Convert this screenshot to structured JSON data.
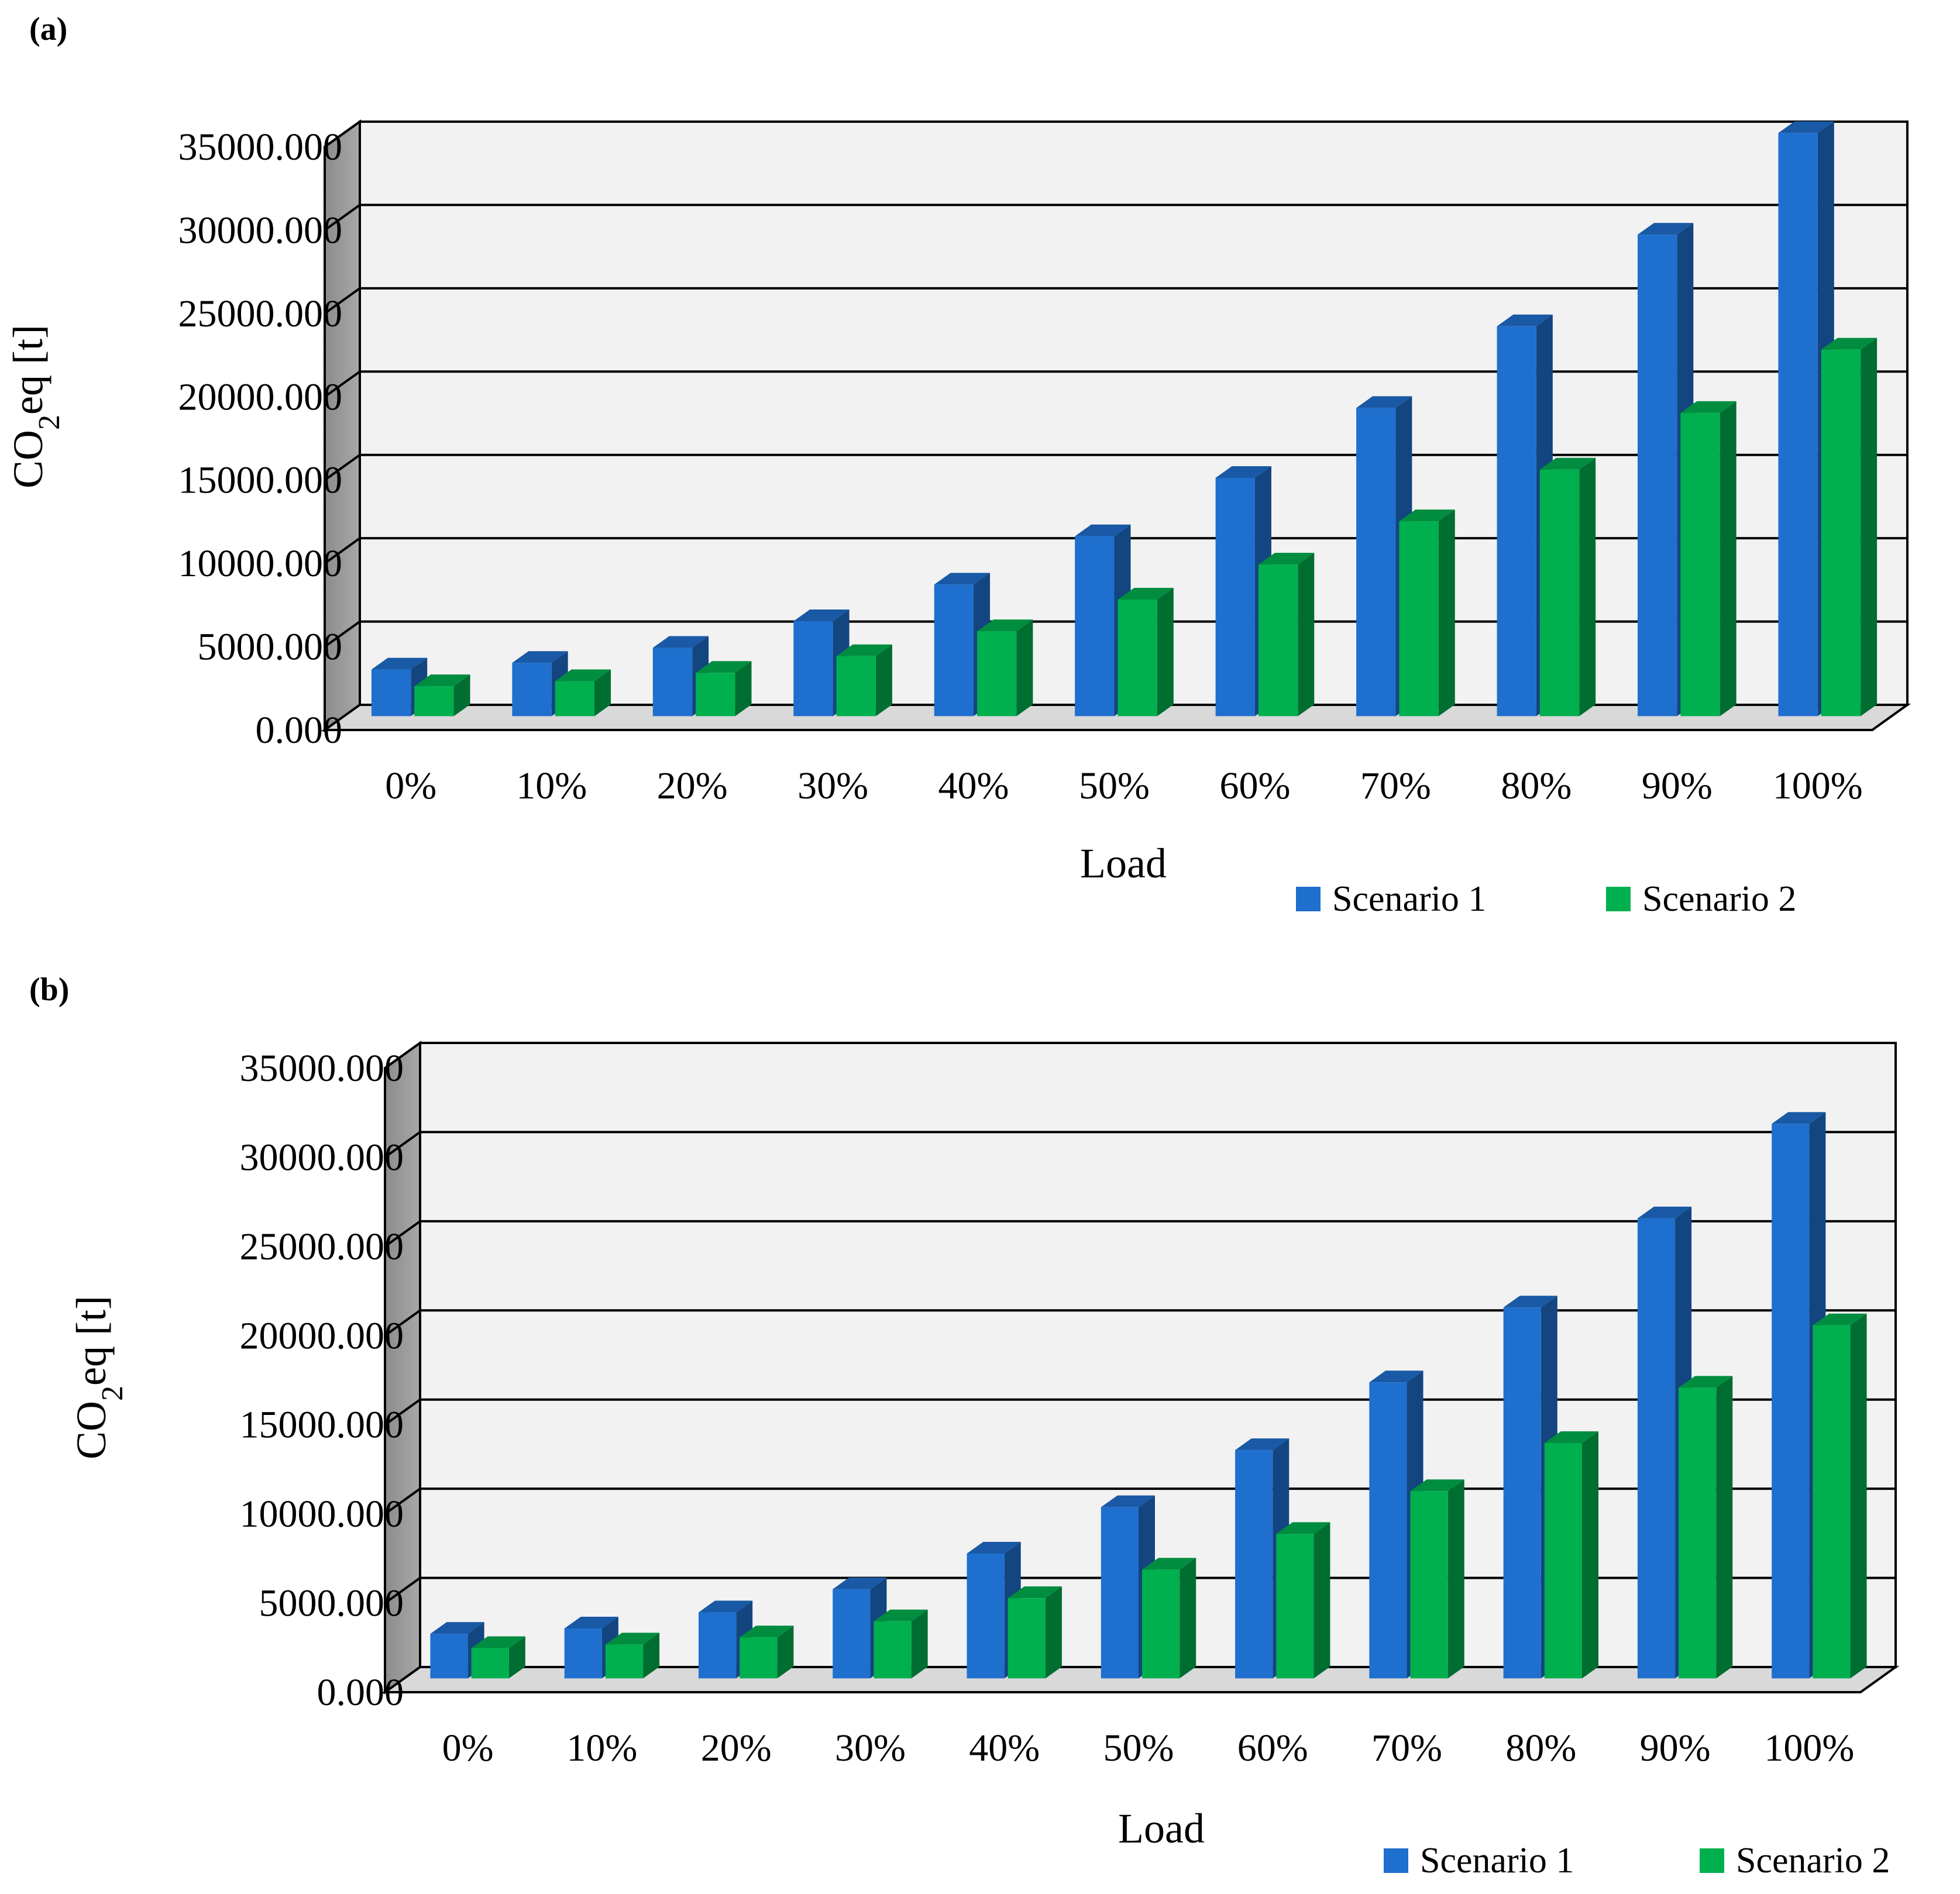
{
  "chart_data": [
    {
      "panel_label": "(a)",
      "type": "bar",
      "style": "3d-clustered-column",
      "categories": [
        "0%",
        "10%",
        "20%",
        "30%",
        "40%",
        "50%",
        "60%",
        "70%",
        "80%",
        "90%",
        "100%"
      ],
      "series": [
        {
          "name": "Scenario 1",
          "values": [
            2800,
            3200,
            4100,
            5700,
            7900,
            10800,
            14300,
            18500,
            23400,
            28900,
            35000
          ]
        },
        {
          "name": "Scenario 2",
          "values": [
            1800,
            2100,
            2600,
            3600,
            5100,
            7000,
            9100,
            11700,
            14800,
            18200,
            22000
          ]
        }
      ],
      "xlabel": "Load",
      "ylabel_main": "CO",
      "ylabel_sub": "2",
      "ylabel_rest": "eq [t]",
      "ylim": [
        0,
        35000
      ],
      "yticks": [
        "0.000",
        "5000.000",
        "10000.000",
        "15000.000",
        "20000.000",
        "25000.000",
        "30000.000",
        "35000.000"
      ],
      "legend_position": "bottom-right",
      "colors": {
        "series1": "#1f6fce",
        "series2": "#00b04f"
      }
    },
    {
      "panel_label": "(b)",
      "type": "bar",
      "style": "3d-clustered-column",
      "categories": [
        "0%",
        "10%",
        "20%",
        "30%",
        "40%",
        "50%",
        "60%",
        "70%",
        "80%",
        "90%",
        "100%"
      ],
      "series": [
        {
          "name": "Scenario 1",
          "values": [
            2500,
            2800,
            3700,
            5000,
            7000,
            9600,
            12800,
            16600,
            20800,
            25800,
            31100
          ]
        },
        {
          "name": "Scenario 2",
          "values": [
            1700,
            1900,
            2300,
            3200,
            4500,
            6100,
            8100,
            10500,
            13200,
            16300,
            19800
          ]
        }
      ],
      "xlabel": "Load",
      "ylabel_main": "CO",
      "ylabel_sub": "2",
      "ylabel_rest": "eq [t]",
      "ylim": [
        0,
        35000
      ],
      "yticks": [
        "0.000",
        "5000.000",
        "10000.000",
        "15000.000",
        "20000.000",
        "25000.000",
        "30000.000",
        "35000.000"
      ],
      "legend_position": "bottom-right",
      "colors": {
        "series1": "#1f6fce",
        "series2": "#00b04f"
      }
    }
  ]
}
